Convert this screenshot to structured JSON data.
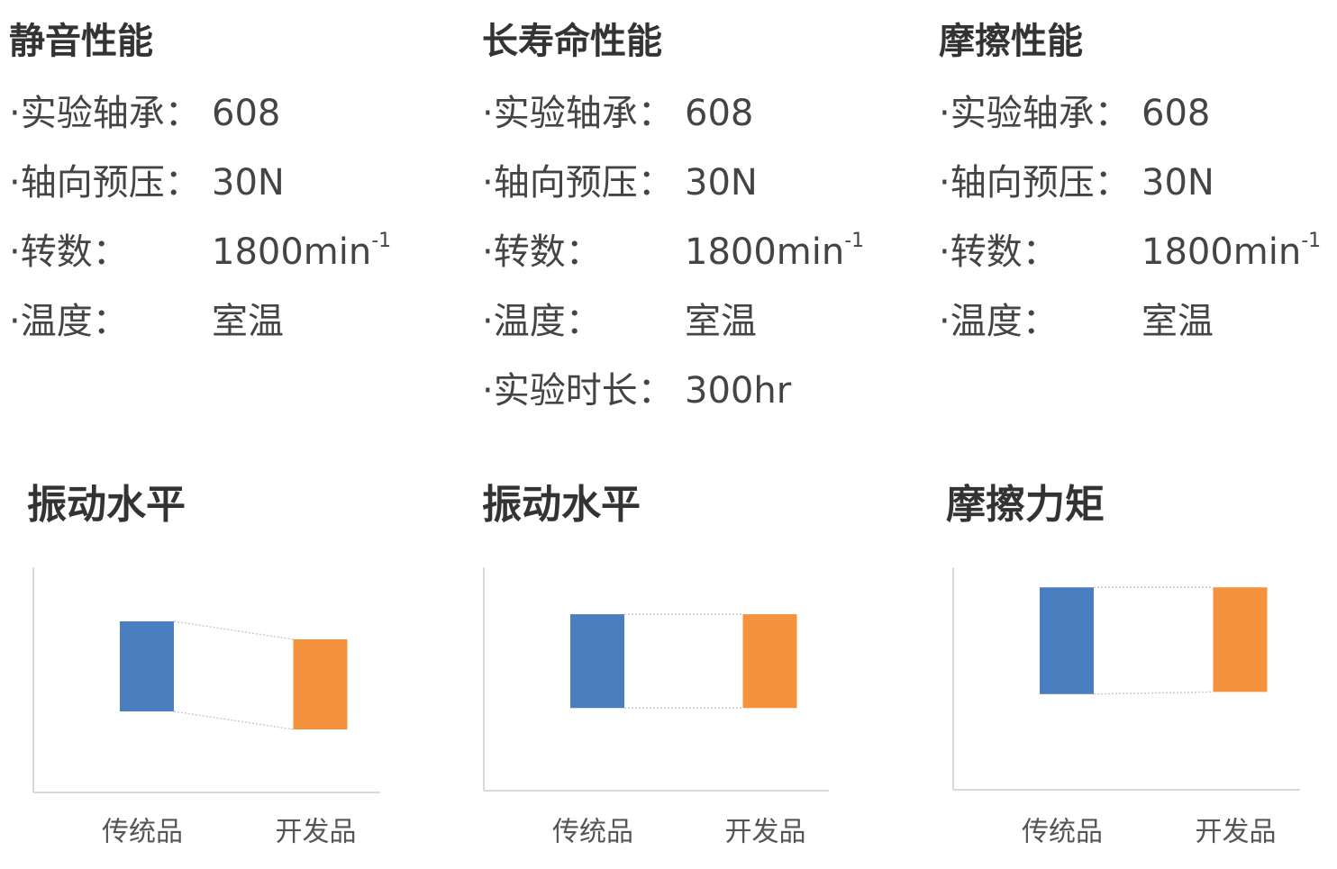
{
  "sections": [
    {
      "title": "静音性能",
      "specs": [
        {
          "label": "·实验轴承：",
          "value": "608"
        },
        {
          "label": "·轴向预压：",
          "value": "30N"
        },
        {
          "label": "·转数：",
          "value": "1800min",
          "sup": "-1"
        },
        {
          "label": "·温度：",
          "value": "室温"
        }
      ]
    },
    {
      "title": "长寿命性能",
      "specs": [
        {
          "label": "·实验轴承：",
          "value": "608"
        },
        {
          "label": "·轴向预压：",
          "value": "30N"
        },
        {
          "label": "·转数：",
          "value": "1800min",
          "sup": "-1"
        },
        {
          "label": "·温度：",
          "value": "室温"
        },
        {
          "label": "·实验时长：",
          "value": "300hr"
        }
      ]
    },
    {
      "title": "摩擦性能",
      "specs": [
        {
          "label": "·实验轴承：",
          "value": "608"
        },
        {
          "label": "·轴向预压：",
          "value": "30N"
        },
        {
          "label": "·转数：",
          "value": "1800min",
          "sup": "-1"
        },
        {
          "label": "·温度：",
          "value": "室温"
        }
      ]
    }
  ],
  "chart_data": [
    {
      "type": "floating-bar",
      "title": "振动水平",
      "categories": [
        "传统品",
        "开发品"
      ],
      "low": [
        36,
        28
      ],
      "high": [
        76,
        68
      ],
      "colors": [
        "#4a7ebf",
        "#f5923e"
      ],
      "ylim": [
        0,
        100
      ]
    },
    {
      "type": "floating-bar",
      "title": "振动水平",
      "categories": [
        "传统品",
        "开发品"
      ],
      "low": [
        37,
        37
      ],
      "high": [
        79,
        79
      ],
      "colors": [
        "#4a7ebf",
        "#f5923e"
      ],
      "ylim": [
        0,
        100
      ]
    },
    {
      "type": "floating-bar",
      "title": "摩擦力矩",
      "categories": [
        "传统品",
        "开发品"
      ],
      "low": [
        43,
        44
      ],
      "high": [
        91,
        91
      ],
      "colors": [
        "#4a7ebf",
        "#f5923e"
      ],
      "ylim": [
        0,
        100
      ]
    }
  ]
}
